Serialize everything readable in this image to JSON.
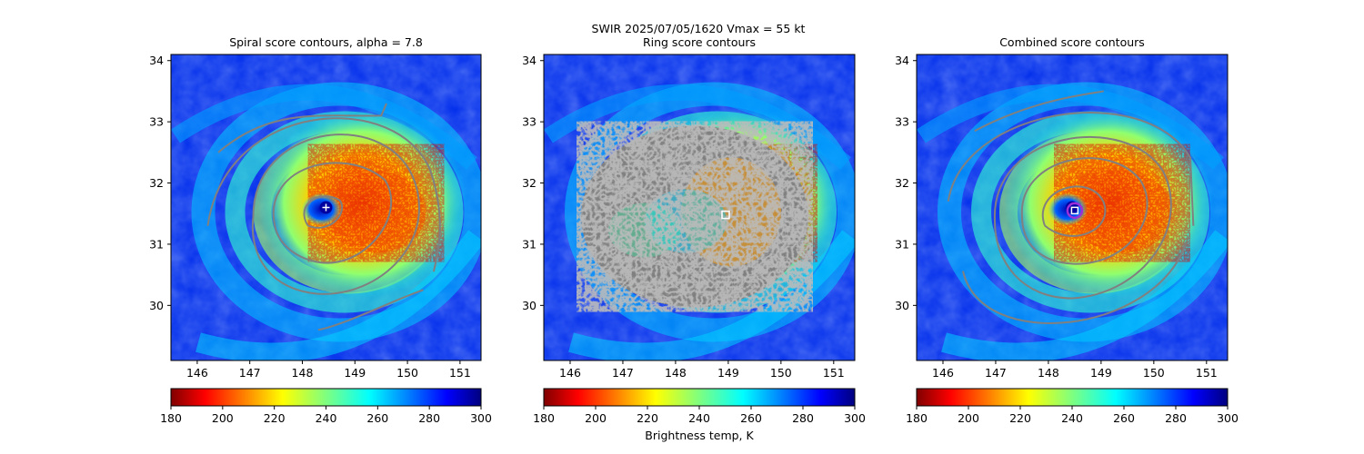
{
  "figure": {
    "suptitle_line1": "SWIR  2025/07/05/1620    Vmax = 55 kt"
  },
  "chart_data": [
    {
      "type": "heatmap",
      "title": "Spiral score contours, alpha =  7.8",
      "x_ticks": [
        "146",
        "147",
        "148",
        "149",
        "150",
        "151"
      ],
      "y_ticks": [
        "30",
        "31",
        "32",
        "33",
        "34"
      ],
      "xlim": [
        145.5,
        151.4
      ],
      "ylim": [
        29.1,
        34.1
      ],
      "storm_center": {
        "lon": 148.45,
        "lat": 31.6
      },
      "center_marker": "white-plus",
      "overlay": "spiral-score-contours",
      "contour_color": "#808080"
    },
    {
      "type": "heatmap",
      "title": "Ring score contours",
      "x_ticks": [
        "146",
        "147",
        "148",
        "149",
        "150",
        "151"
      ],
      "y_ticks": [
        "30",
        "31",
        "32",
        "33",
        "34"
      ],
      "xlim": [
        145.5,
        151.4
      ],
      "ylim": [
        29.1,
        34.1
      ],
      "storm_center": {
        "lon": 148.45,
        "lat": 31.6
      },
      "center_marker": {
        "type": "white-square",
        "lon": 148.95,
        "lat": 31.48
      },
      "overlay": "ring-score-region"
    },
    {
      "type": "heatmap",
      "title": "Combined score contours",
      "x_ticks": [
        "146",
        "147",
        "148",
        "149",
        "150",
        "151"
      ],
      "y_ticks": [
        "30",
        "31",
        "32",
        "33",
        "34"
      ],
      "xlim": [
        145.5,
        151.4
      ],
      "ylim": [
        29.1,
        34.1
      ],
      "storm_center": {
        "lon": 148.45,
        "lat": 31.6
      },
      "center_marker": {
        "type": "white-square-with-purple-circle",
        "lon": 148.5,
        "lat": 31.55
      },
      "overlay": "combined-score-contours",
      "contour_color": "#808080"
    }
  ],
  "colorbars": [
    {
      "ticks": [
        "180",
        "200",
        "220",
        "240",
        "260",
        "280",
        "300"
      ],
      "range": [
        180,
        300
      ],
      "colormap": "jet_r",
      "label": ""
    },
    {
      "ticks": [
        "180",
        "200",
        "220",
        "240",
        "260",
        "280",
        "300"
      ],
      "range": [
        180,
        300
      ],
      "colormap": "jet_r",
      "label": "Brightness temp, K"
    },
    {
      "ticks": [
        "180",
        "200",
        "220",
        "240",
        "260",
        "280",
        "300"
      ],
      "range": [
        180,
        300
      ],
      "colormap": "jet_r",
      "label": ""
    }
  ],
  "colors": {
    "contour": "#808080",
    "marker_ring": "#9b30d9",
    "marker_square": "#ffffff"
  }
}
